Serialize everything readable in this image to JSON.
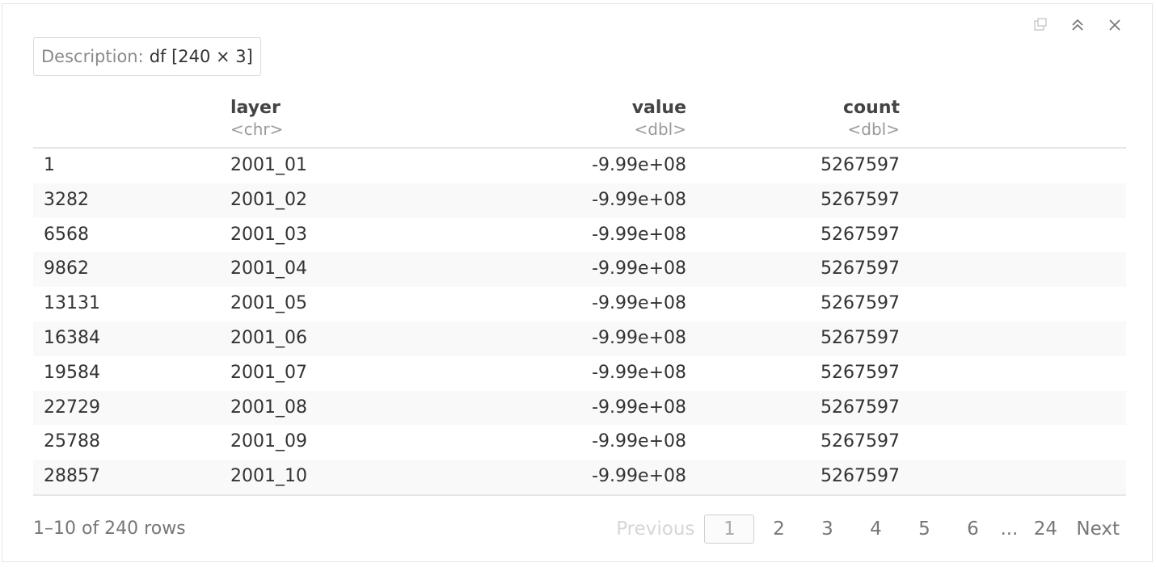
{
  "description": {
    "label": "Description:",
    "value": "df [240 × 3]"
  },
  "columns": [
    {
      "name": "",
      "type": ""
    },
    {
      "name": "layer",
      "type": "<chr>"
    },
    {
      "name": "value",
      "type": "<dbl>"
    },
    {
      "name": "count",
      "type": "<dbl>"
    }
  ],
  "rows": [
    {
      "rownum": "1",
      "layer": "2001_01",
      "value": "-9.99e+08",
      "count": "5267597"
    },
    {
      "rownum": "3282",
      "layer": "2001_02",
      "value": "-9.99e+08",
      "count": "5267597"
    },
    {
      "rownum": "6568",
      "layer": "2001_03",
      "value": "-9.99e+08",
      "count": "5267597"
    },
    {
      "rownum": "9862",
      "layer": "2001_04",
      "value": "-9.99e+08",
      "count": "5267597"
    },
    {
      "rownum": "13131",
      "layer": "2001_05",
      "value": "-9.99e+08",
      "count": "5267597"
    },
    {
      "rownum": "16384",
      "layer": "2001_06",
      "value": "-9.99e+08",
      "count": "5267597"
    },
    {
      "rownum": "19584",
      "layer": "2001_07",
      "value": "-9.99e+08",
      "count": "5267597"
    },
    {
      "rownum": "22729",
      "layer": "2001_08",
      "value": "-9.99e+08",
      "count": "5267597"
    },
    {
      "rownum": "25788",
      "layer": "2001_09",
      "value": "-9.99e+08",
      "count": "5267597"
    },
    {
      "rownum": "28857",
      "layer": "2001_10",
      "value": "-9.99e+08",
      "count": "5267597"
    }
  ],
  "footer": {
    "row_info": "1–10 of 240 rows",
    "previous_label": "Previous",
    "next_label": "Next",
    "pages": [
      "1",
      "2",
      "3",
      "4",
      "5",
      "6"
    ],
    "current_page": "1",
    "ellipsis": "...",
    "last_page": "24"
  },
  "icons": {
    "open_in_viewer": "open-in-viewer-icon",
    "collapse": "collapse-icon",
    "close": "close-icon"
  }
}
